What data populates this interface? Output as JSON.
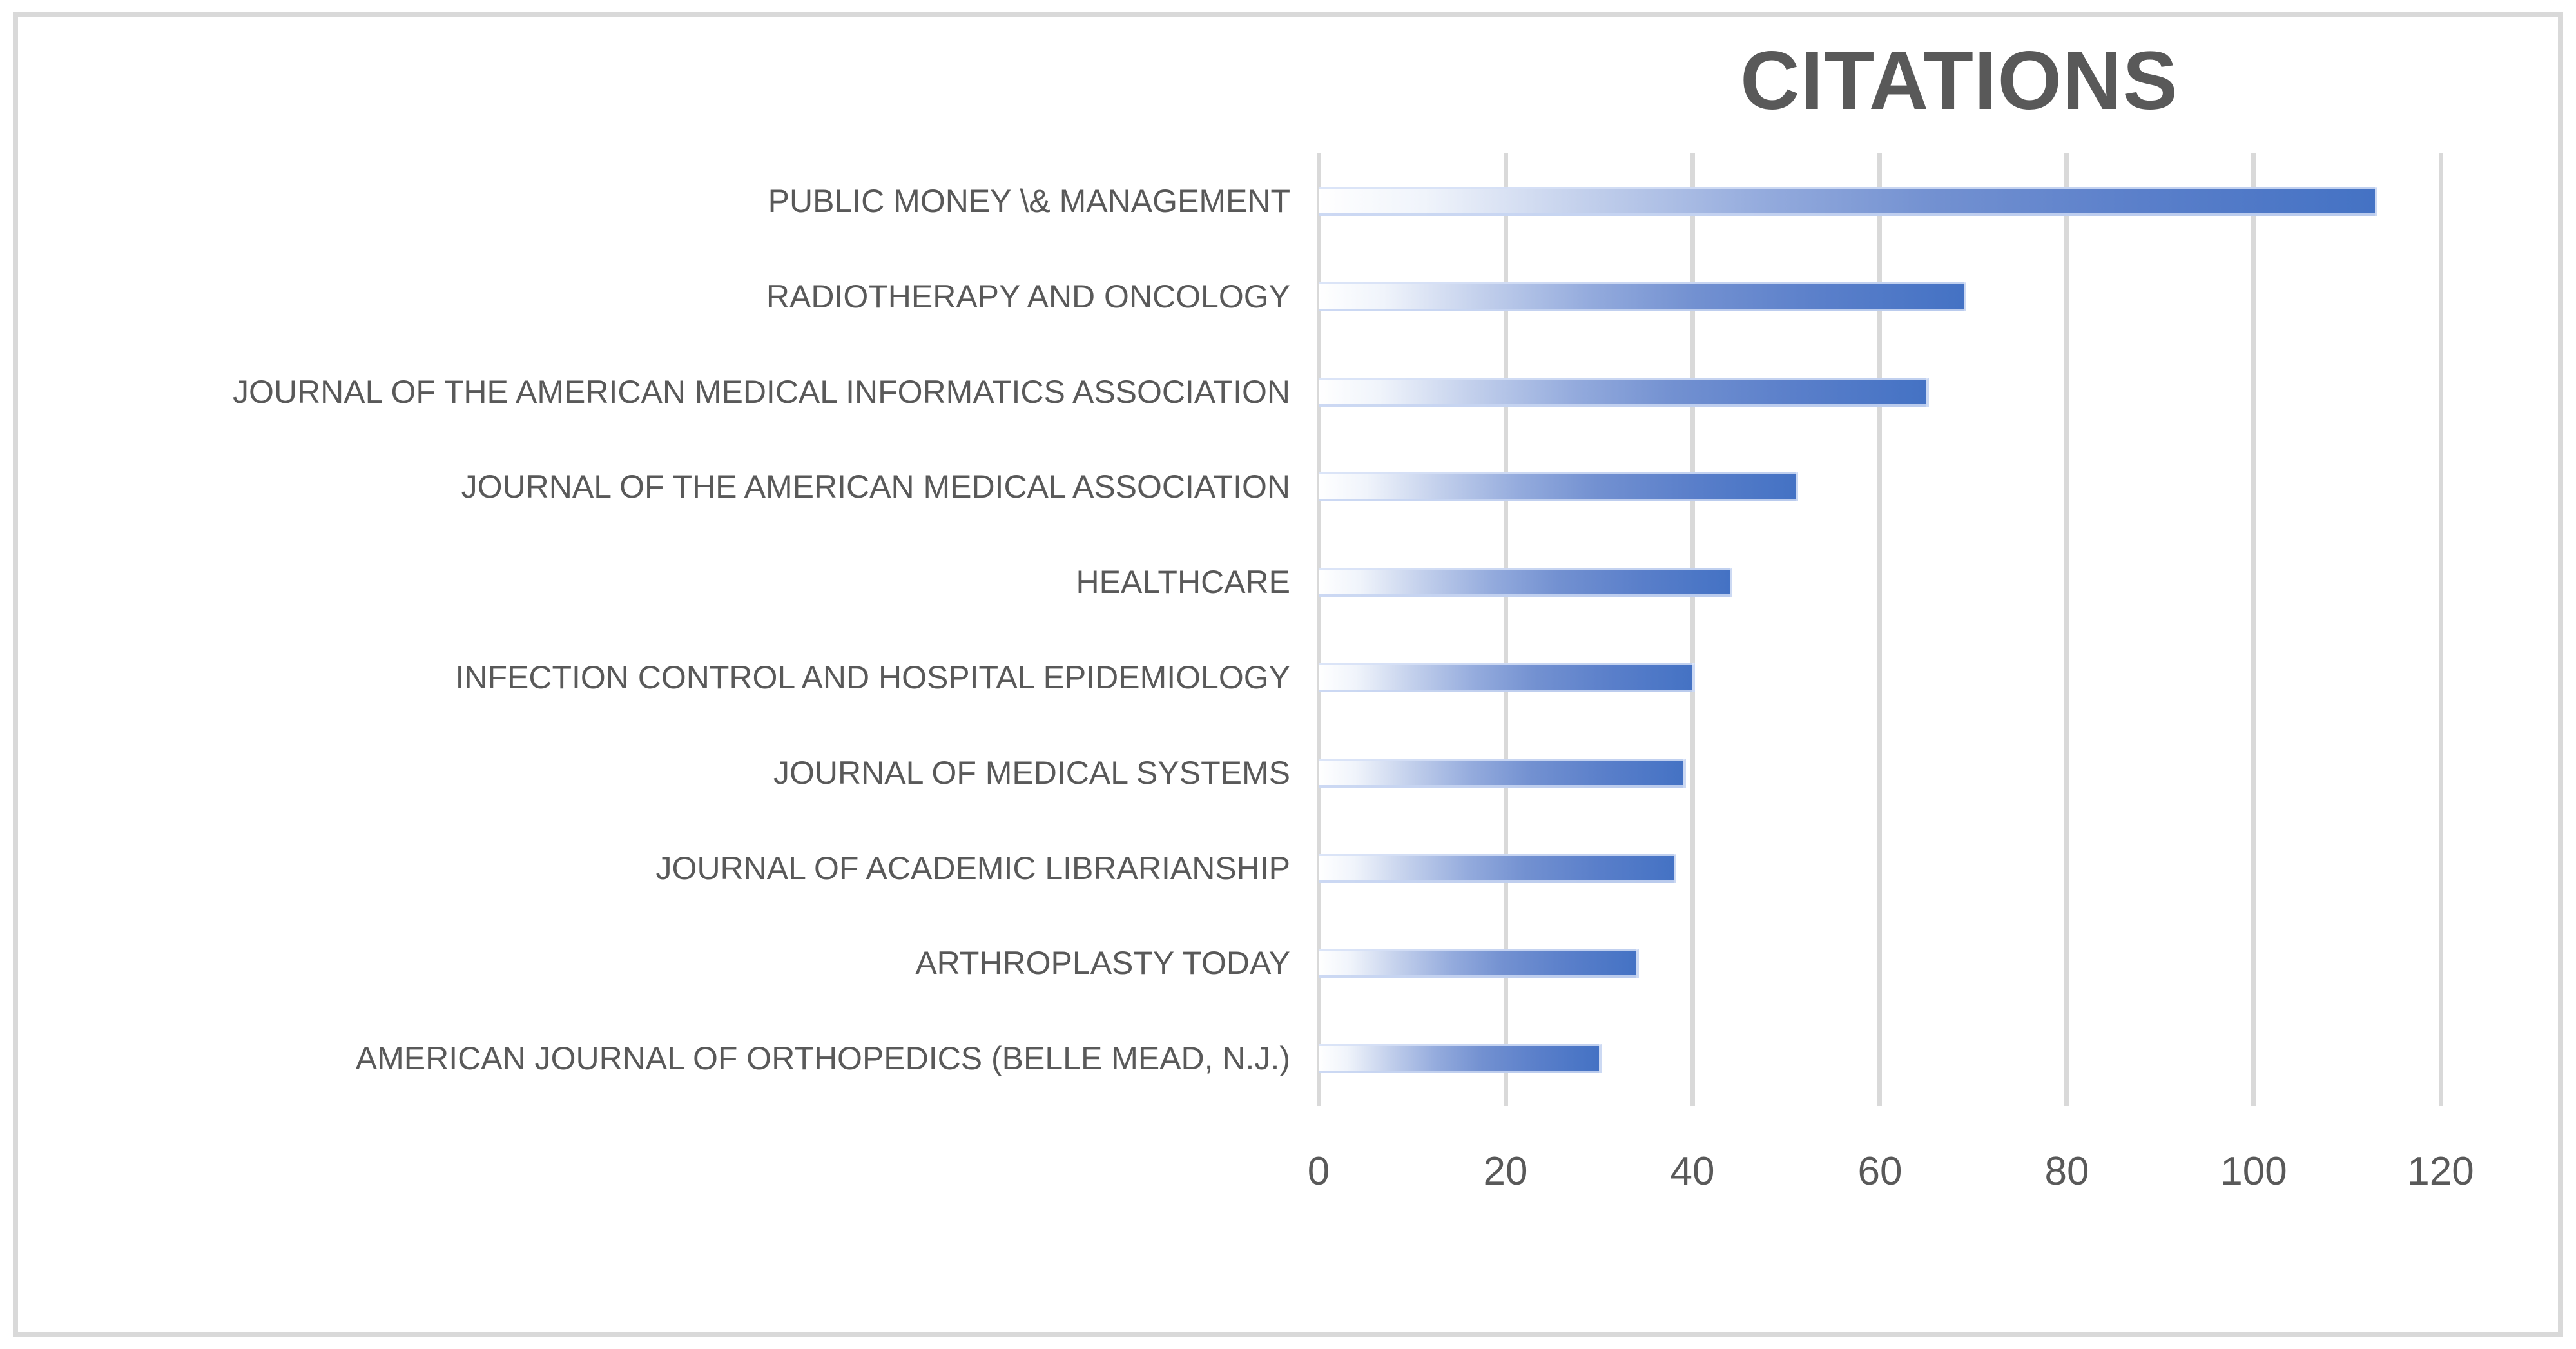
{
  "chart_data": {
    "type": "bar",
    "orientation": "horizontal",
    "title": "CITATIONS",
    "categories": [
      "PUBLIC MONEY \\& MANAGEMENT",
      "RADIOTHERAPY AND ONCOLOGY",
      "JOURNAL OF THE AMERICAN MEDICAL INFORMATICS ASSOCIATION",
      "JOURNAL OF THE AMERICAN MEDICAL ASSOCIATION",
      "HEALTHCARE",
      "INFECTION CONTROL AND HOSPITAL EPIDEMIOLOGY",
      "JOURNAL OF MEDICAL SYSTEMS",
      "JOURNAL OF ACADEMIC LIBRARIANSHIP",
      "ARTHROPLASTY TODAY",
      "AMERICAN JOURNAL OF ORTHOPEDICS (BELLE MEAD, N.J.)"
    ],
    "values": [
      113,
      69,
      65,
      51,
      44,
      40,
      39,
      38,
      34,
      30
    ],
    "xlabel": "",
    "ylabel": "",
    "xlim": [
      0,
      120
    ],
    "x_ticks": [
      0,
      20,
      40,
      60,
      80,
      100,
      120
    ],
    "grid": "vertical-only",
    "legend": "none",
    "colors": {
      "bar_solid": "#4472C4",
      "bar_gradient_start": "#FFFFFF",
      "bar_edge": "#C7D5F2",
      "gridline": "#D9D9D9",
      "text": "#595959",
      "frame_border": "#D9D9D9",
      "background": "#FFFFFF"
    }
  }
}
